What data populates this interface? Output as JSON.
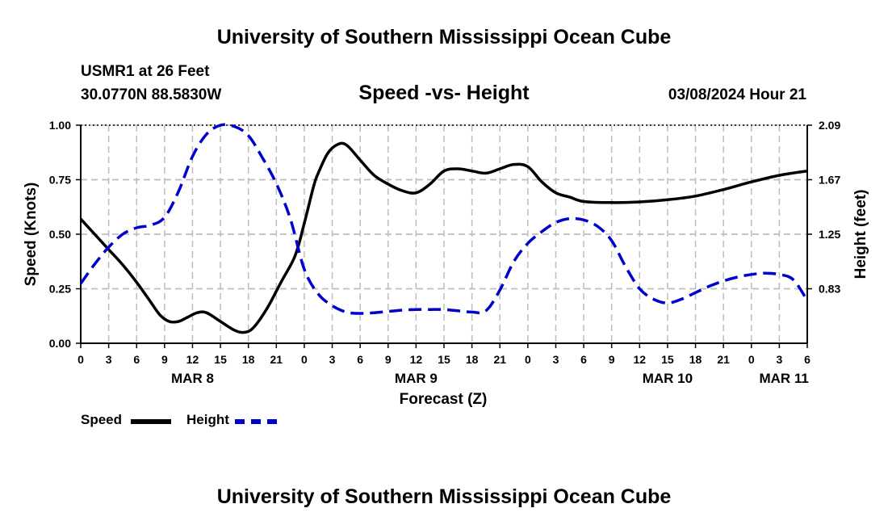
{
  "page": {
    "title_top": "University of Southern Mississippi Ocean Cube",
    "title_bottom": "University of Southern Mississippi Ocean Cube",
    "station": "USMR1 at 26 Feet",
    "coords": "30.0770N  88.5830W",
    "datetime": "03/08/2024 Hour 21"
  },
  "legend": {
    "speed_label": "Speed",
    "height_label": "Height",
    "speed_color": "#000000",
    "height_color": "#0000cc"
  },
  "chart_data": {
    "type": "line",
    "title": "Speed -vs- Height",
    "xlabel": "Forecast (Z)",
    "ylabel": "Speed (Knots)",
    "y2label": "Height (feet)",
    "x_unit": "hours from Mar 8 00Z",
    "xlim": [
      0,
      78
    ],
    "ylim": [
      0,
      1.0
    ],
    "y2lim": [
      0.41,
      2.09
    ],
    "grid": true,
    "x_ticks": [
      0,
      3,
      6,
      9,
      12,
      15,
      18,
      21,
      24,
      27,
      30,
      33,
      36,
      39,
      42,
      45,
      48,
      51,
      54,
      57,
      60,
      63,
      66,
      69,
      72,
      75,
      78
    ],
    "x_tick_labels": [
      "0",
      "3",
      "6",
      "9",
      "12",
      "15",
      "18",
      "21",
      "0",
      "3",
      "6",
      "9",
      "12",
      "15",
      "18",
      "21",
      "0",
      "3",
      "6",
      "9",
      "12",
      "15",
      "18",
      "21",
      "0",
      "3",
      "6"
    ],
    "date_labels": [
      {
        "label": "MAR 8",
        "at": 12
      },
      {
        "label": "MAR 9",
        "at": 36
      },
      {
        "label": "MAR 10",
        "at": 63
      },
      {
        "label": "MAR 11",
        "at": 75.5
      }
    ],
    "y_ticks": [
      0,
      0.25,
      0.5,
      0.75,
      1.0
    ],
    "y_tick_labels": [
      "0.00",
      "0.25",
      "0.50",
      "0.75",
      "1.00"
    ],
    "y2_ticks": [
      0.83,
      1.25,
      1.67,
      2.09
    ],
    "y2_tick_labels": [
      "0.83",
      "1.25",
      "1.67",
      "2.09"
    ],
    "series": [
      {
        "name": "Speed",
        "axis": "left",
        "color": "#000000",
        "style": "solid",
        "x": [
          0,
          1.5,
          3,
          4.5,
          6,
          7.5,
          8.5,
          9.5,
          10.5,
          11.5,
          12.5,
          13.5,
          15,
          16.5,
          17.5,
          18.5,
          20,
          21.5,
          23,
          24,
          25,
          25.5,
          26.5,
          27.5,
          28.5,
          30,
          31.5,
          33,
          34.5,
          36,
          37.5,
          39,
          40.5,
          42,
          43.5,
          45,
          46.5,
          48,
          49.5,
          51,
          52.5,
          54,
          57,
          60,
          63,
          66,
          69,
          72,
          75,
          78
        ],
        "y": [
          0.57,
          0.5,
          0.43,
          0.36,
          0.28,
          0.19,
          0.13,
          0.1,
          0.1,
          0.12,
          0.14,
          0.14,
          0.1,
          0.06,
          0.05,
          0.07,
          0.16,
          0.28,
          0.4,
          0.55,
          0.72,
          0.78,
          0.87,
          0.91,
          0.91,
          0.84,
          0.77,
          0.73,
          0.7,
          0.69,
          0.73,
          0.79,
          0.8,
          0.79,
          0.78,
          0.8,
          0.82,
          0.81,
          0.74,
          0.69,
          0.67,
          0.65,
          0.645,
          0.648,
          0.658,
          0.675,
          0.705,
          0.74,
          0.77,
          0.79
        ]
      },
      {
        "name": "Height",
        "axis": "right",
        "color": "#0000cc",
        "style": "dashed",
        "x": [
          0,
          1.5,
          3,
          4.5,
          6,
          7.5,
          9,
          10.5,
          12,
          13.5,
          15,
          16.5,
          18,
          19.5,
          21,
          22.5,
          24,
          25.5,
          27,
          28.5,
          30,
          31.5,
          33,
          34.5,
          36,
          37.5,
          39,
          40.5,
          42,
          43.5,
          45,
          46.5,
          48,
          49.5,
          51,
          52.5,
          54,
          55.5,
          57,
          58.5,
          60,
          61.5,
          63,
          64.5,
          66,
          67.5,
          69,
          70.5,
          72,
          73.5,
          75,
          76.5,
          78
        ],
        "y": [
          0.87,
          1.02,
          1.15,
          1.25,
          1.3,
          1.32,
          1.38,
          1.58,
          1.85,
          2.02,
          2.09,
          2.08,
          2.01,
          1.84,
          1.64,
          1.37,
          0.98,
          0.79,
          0.7,
          0.65,
          0.64,
          0.645,
          0.655,
          0.665,
          0.67,
          0.67,
          0.67,
          0.66,
          0.65,
          0.66,
          0.82,
          1.04,
          1.18,
          1.27,
          1.34,
          1.37,
          1.36,
          1.31,
          1.2,
          1.0,
          0.83,
          0.75,
          0.72,
          0.75,
          0.8,
          0.85,
          0.89,
          0.92,
          0.94,
          0.95,
          0.94,
          0.9,
          0.74
        ]
      }
    ]
  }
}
